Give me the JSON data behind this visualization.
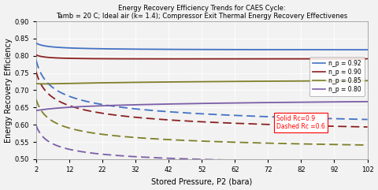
{
  "title_line1": "Energy Recovery Efficiency Trends for CAES Cycle:",
  "title_line2": "Tamb = 20 C; Ideal air (k= 1.4); Compressor Exit Thermal Energy Recovery Effectivenes",
  "xlabel": "Stored Pressure, P2 (bara)",
  "ylabel": "Energy Recovery Efficiency",
  "xlim": [
    2,
    102
  ],
  "ylim": [
    0.5,
    0.9
  ],
  "xticks": [
    2,
    12,
    22,
    32,
    42,
    52,
    62,
    72,
    82,
    92,
    102
  ],
  "yticks": [
    0.5,
    0.55,
    0.6,
    0.65,
    0.7,
    0.75,
    0.8,
    0.85,
    0.9
  ],
  "colors": {
    "0.92": "#4472c4",
    "0.90": "#8b2020",
    "0.85": "#7f7f2a",
    "0.80": "#7b5ea7"
  },
  "legend_labels": [
    "n_p = 0.92",
    "n_p = 0.90",
    "n_p = 0.85",
    "n_p = 0.80"
  ],
  "annotation_solid": "Solid Rc=0.9",
  "annotation_dashed": "Dashed Rc =0.6",
  "background_color": "#f2f2f2",
  "figsize": [
    4.8,
    2.41
  ],
  "dpi": 100
}
